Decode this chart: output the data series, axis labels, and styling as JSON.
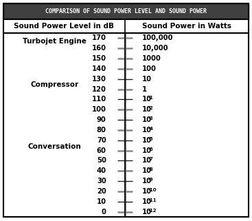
{
  "title": "COMPARISON OF SOUND POWER LEVEL AND SOUND POWER",
  "col1_header": "Sound Power Level in dB",
  "col2_header": "Sound Power in Watts",
  "db_values": [
    170,
    160,
    150,
    140,
    130,
    120,
    110,
    100,
    90,
    80,
    70,
    60,
    50,
    40,
    30,
    20,
    10,
    0
  ],
  "watts_superscripts": [
    null,
    null,
    null,
    null,
    null,
    null,
    "-1",
    "-2",
    "-3",
    "-4",
    "-5",
    "-6",
    "-7",
    "-8",
    "-9",
    "-10",
    "-11",
    "-12"
  ],
  "watts_bases": [
    "100,000",
    "10,000",
    "1000",
    "100",
    "10",
    "1",
    "10",
    "10",
    "10",
    "10",
    "10",
    "10",
    "10",
    "10",
    "10",
    "10",
    "10",
    "10"
  ],
  "gray_ticks": [
    170,
    160,
    150,
    140,
    120,
    100,
    80,
    60,
    40,
    20,
    0
  ],
  "labels": [
    {
      "text": "Turbojet Engine",
      "db_approx": 162.5
    },
    {
      "text": "Compressor",
      "db_approx": 122.5
    },
    {
      "text": "Conversation",
      "db_approx": 65
    }
  ],
  "title_bg": "#404040",
  "title_color": "#ffffff",
  "border_color": "#000000"
}
